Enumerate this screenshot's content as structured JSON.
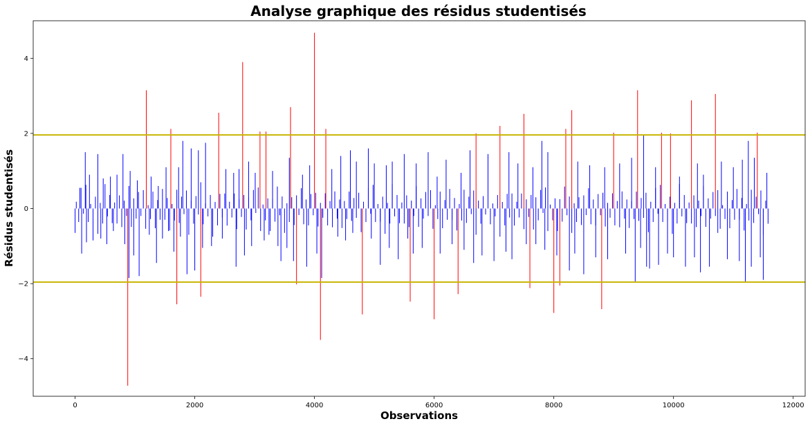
{
  "chart_data": {
    "type": "bar",
    "title": "Analyse graphique des résidus studentisés",
    "xlabel": "Observations",
    "ylabel": "Résidus studentisés",
    "xlim": [
      -700,
      12200
    ],
    "ylim": [
      -5.0,
      5.0
    ],
    "x_ticks": [
      0,
      2000,
      4000,
      6000,
      8000,
      10000,
      12000
    ],
    "x_tick_labels": [
      "0",
      "2000",
      "4000",
      "6000",
      "8000",
      "10000",
      "12000"
    ],
    "y_ticks": [
      -4,
      -2,
      0,
      2,
      4
    ],
    "y_tick_labels": [
      "−4",
      "−2",
      "0",
      "2",
      "4"
    ],
    "thresholds": [
      1.96,
      -1.96
    ],
    "threshold_color": "#c8b400",
    "normal_color": "#0000ff",
    "outlier_color": "#ff0000",
    "grid": false,
    "n_observations": 11600,
    "series": [
      {
        "x": [
          0,
          80,
          110,
          170,
          190,
          240,
          300,
          380,
          430,
          470,
          530,
          590,
          640,
          700,
          800,
          830,
          880,
          900,
          920,
          980,
          1040,
          1070,
          1190,
          1240,
          1270,
          1360,
          1390,
          1460,
          1520,
          1560,
          1600,
          1650,
          1700,
          1730,
          1760,
          1800,
          1870,
          1940,
          2000,
          2060,
          2100,
          2130,
          2180,
          2280,
          2400,
          2460,
          2520,
          2650,
          2690,
          2740,
          2800,
          2830,
          2900,
          2950,
          3010,
          3090,
          3160,
          3190,
          3240,
          3300,
          3390,
          3440,
          3540,
          3580,
          3600,
          3650,
          3700,
          3800,
          3870,
          3920,
          4000,
          4040,
          4100,
          4120,
          4190,
          4290,
          4390,
          4440,
          4520,
          4600,
          4640,
          4700,
          4800,
          4900,
          4950,
          5000,
          5100,
          5200,
          5250,
          5300,
          5400,
          5500,
          5560,
          5600,
          5650,
          5700,
          5800,
          5900,
          6000,
          6050,
          6100,
          6200,
          6300,
          6400,
          6450,
          6500,
          6600,
          6660,
          6700,
          6800,
          6900,
          7000,
          7100,
          7200,
          7250,
          7300,
          7400,
          7500,
          7540,
          7600,
          7650,
          7700,
          7800,
          7850,
          7900,
          8000,
          8050,
          8100,
          8200,
          8260,
          8300,
          8350,
          8400,
          8500,
          8600,
          8700,
          8800,
          8850,
          8900,
          9000,
          9100,
          9200,
          9300,
          9360,
          9400,
          9450,
          9500,
          9550,
          9600,
          9700,
          9750,
          9800,
          9900,
          9950,
          10000,
          10100,
          10200,
          10300,
          10350,
          10400,
          10450,
          10500,
          10600,
          10700,
          10740,
          10800,
          10900,
          11000,
          11100,
          11150,
          11200,
          11250,
          11300,
          11350,
          11400,
          11450,
          11500,
          11560
        ],
        "values": [
          -0.65,
          0.55,
          -1.2,
          1.5,
          -0.9,
          0.9,
          -0.85,
          1.45,
          -0.8,
          0.8,
          -0.95,
          0.85,
          -0.6,
          0.9,
          1.45,
          -0.95,
          -4.72,
          -1.85,
          1.0,
          -1.25,
          0.75,
          -1.8,
          3.15,
          -0.7,
          0.85,
          -1.45,
          0.6,
          -0.8,
          1.1,
          -0.6,
          2.12,
          -1.15,
          -2.55,
          1.1,
          -0.75,
          1.8,
          -1.75,
          1.6,
          -1.65,
          1.55,
          -2.35,
          -1.05,
          1.75,
          -1.0,
          2.55,
          -0.8,
          1.05,
          0.95,
          -1.55,
          1.05,
          3.9,
          -1.25,
          1.25,
          -1.0,
          0.95,
          2.05,
          -0.85,
          2.05,
          -0.7,
          1.0,
          -1.0,
          -1.4,
          -1.05,
          1.35,
          2.7,
          -1.4,
          -2.02,
          0.9,
          -1.55,
          1.15,
          4.68,
          -1.2,
          -3.5,
          -1.85,
          2.12,
          1.05,
          -0.75,
          1.4,
          -0.85,
          1.55,
          -0.65,
          1.25,
          -2.82,
          1.6,
          -0.8,
          1.2,
          -1.5,
          1.15,
          -1.05,
          1.25,
          -1.35,
          1.45,
          -0.8,
          -2.48,
          -1.2,
          1.2,
          -1.05,
          1.5,
          -2.95,
          0.85,
          -1.2,
          1.3,
          -0.95,
          -2.28,
          0.95,
          -1.1,
          1.55,
          -1.45,
          2.0,
          -1.25,
          1.45,
          -1.4,
          2.2,
          -1.15,
          1.5,
          -1.35,
          1.2,
          2.52,
          -0.95,
          -2.12,
          1.1,
          -0.95,
          1.8,
          -1.1,
          1.5,
          -2.78,
          -1.25,
          -2.05,
          2.12,
          -1.65,
          2.62,
          -1.2,
          1.25,
          -1.75,
          1.15,
          -1.3,
          -2.68,
          1.1,
          -1.35,
          2.02,
          1.2,
          -1.2,
          1.35,
          -1.95,
          3.15,
          -1.05,
          1.95,
          -1.55,
          -1.6,
          1.1,
          -1.5,
          2.02,
          -1.2,
          2.0,
          -1.3,
          0.85,
          -1.55,
          2.88,
          -1.3,
          1.2,
          -1.7,
          0.9,
          -1.55,
          3.05,
          -0.65,
          1.25,
          -1.35,
          1.1,
          -1.4,
          1.3,
          -1.95,
          1.8,
          -1.55,
          1.35,
          2.02,
          -1.3,
          -1.9,
          0.95
        ],
        "filler_values": [
          0.3,
          -0.45,
          0.55,
          -0.2,
          0.7,
          -0.6,
          0.15,
          -0.35,
          0.45,
          -0.75,
          0.25,
          -0.5,
          0.65,
          -0.3,
          0.4,
          -0.65,
          0.2,
          -0.4,
          0.5,
          -0.55,
          0.35,
          -0.25,
          0.6,
          -0.7
        ]
      }
    ]
  }
}
